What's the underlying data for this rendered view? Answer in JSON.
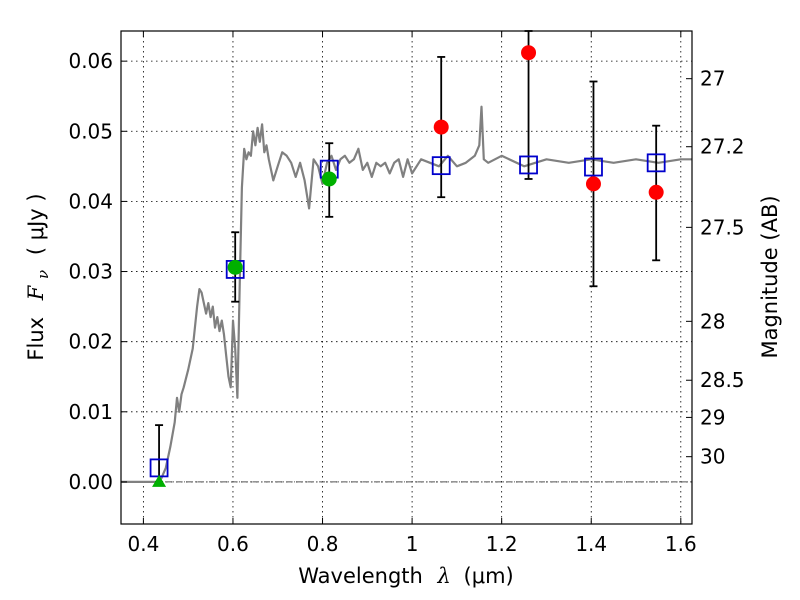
{
  "chart_data": {
    "type": "scatter",
    "xlabel": {
      "text": "Wavelength",
      "symbol": "λ",
      "unit": "(μm)"
    },
    "ylabel": {
      "text": "Flux",
      "symbol": "F",
      "subscript": "ν",
      "unit": "( μJy )"
    },
    "y2label": "Magnitude (AB)",
    "xlim": [
      0.35,
      1.625
    ],
    "ylim": [
      -0.006,
      0.0643
    ],
    "grid": true,
    "x_ticks": [
      0.4,
      0.6,
      0.8,
      1.0,
      1.2,
      1.4,
      1.6
    ],
    "x_tick_labels": [
      "0.4",
      "0.6",
      "0.8",
      "1",
      "1.2",
      "1.4",
      "1.6"
    ],
    "y_ticks": [
      0.0,
      0.01,
      0.02,
      0.03,
      0.04,
      0.05,
      0.06
    ],
    "y_tick_labels": [
      "0.00",
      "0.01",
      "0.02",
      "0.03",
      "0.04",
      "0.05",
      "0.06"
    ],
    "magnitude_ticks": [
      {
        "label": "27",
        "flux": 0.0575
      },
      {
        "label": "27.2",
        "flux": 0.0478
      },
      {
        "label": "27.5",
        "flux": 0.0363
      },
      {
        "label": "28",
        "flux": 0.0229
      },
      {
        "label": "28.5",
        "flux": 0.0145
      },
      {
        "label": "29",
        "flux": 0.0092
      },
      {
        "label": "30",
        "flux": 0.0036
      }
    ],
    "colors": {
      "sed": "#808080",
      "model_points": "#0000cc",
      "detections": "#ff0000",
      "fitted": "#00b000",
      "errorbars": "#000000",
      "zero_line": "#555555"
    },
    "sed_curve": {
      "x": [
        0.35,
        0.4,
        0.42,
        0.43,
        0.44,
        0.45,
        0.46,
        0.47,
        0.475,
        0.48,
        0.485,
        0.49,
        0.5,
        0.51,
        0.52,
        0.525,
        0.53,
        0.54,
        0.545,
        0.55,
        0.555,
        0.56,
        0.565,
        0.57,
        0.575,
        0.58,
        0.585,
        0.59,
        0.595,
        0.6,
        0.605,
        0.61,
        0.615,
        0.62,
        0.625,
        0.63,
        0.635,
        0.64,
        0.645,
        0.65,
        0.655,
        0.66,
        0.665,
        0.67,
        0.675,
        0.68,
        0.69,
        0.7,
        0.71,
        0.72,
        0.73,
        0.74,
        0.75,
        0.76,
        0.77,
        0.78,
        0.79,
        0.8,
        0.81,
        0.82,
        0.83,
        0.84,
        0.85,
        0.86,
        0.87,
        0.88,
        0.89,
        0.9,
        0.91,
        0.92,
        0.93,
        0.94,
        0.95,
        0.96,
        0.97,
        0.98,
        0.99,
        1.0,
        1.02,
        1.04,
        1.06,
        1.08,
        1.1,
        1.12,
        1.14,
        1.15,
        1.155,
        1.16,
        1.17,
        1.2,
        1.25,
        1.3,
        1.35,
        1.4,
        1.45,
        1.5,
        1.55,
        1.6,
        1.625
      ],
      "y": [
        0.0,
        0.0,
        0.0,
        0.0,
        0.0005,
        0.002,
        0.005,
        0.0085,
        0.012,
        0.01,
        0.0125,
        0.0135,
        0.016,
        0.019,
        0.025,
        0.0275,
        0.027,
        0.024,
        0.0255,
        0.0235,
        0.025,
        0.022,
        0.0235,
        0.0215,
        0.023,
        0.021,
        0.018,
        0.015,
        0.0135,
        0.023,
        0.019,
        0.012,
        0.028,
        0.042,
        0.0475,
        0.046,
        0.047,
        0.0465,
        0.05,
        0.048,
        0.0505,
        0.0485,
        0.051,
        0.047,
        0.048,
        0.046,
        0.043,
        0.045,
        0.047,
        0.0465,
        0.0455,
        0.0435,
        0.0455,
        0.043,
        0.039,
        0.046,
        0.045,
        0.0425,
        0.0455,
        0.0465,
        0.0445,
        0.046,
        0.0465,
        0.0455,
        0.046,
        0.0475,
        0.0445,
        0.0455,
        0.0435,
        0.0455,
        0.045,
        0.0455,
        0.044,
        0.0455,
        0.046,
        0.0435,
        0.046,
        0.044,
        0.046,
        0.0455,
        0.045,
        0.0465,
        0.045,
        0.0455,
        0.0465,
        0.048,
        0.0535,
        0.046,
        0.0455,
        0.0465,
        0.045,
        0.046,
        0.0455,
        0.046,
        0.0455,
        0.046,
        0.0455,
        0.046,
        0.046
      ]
    },
    "series": [
      {
        "marker": "square",
        "x": [
          0.435,
          0.605,
          0.815,
          1.065,
          1.26,
          1.405,
          1.545
        ],
        "y": [
          0.002,
          0.0303,
          0.0446,
          0.0451,
          0.0452,
          0.0449,
          0.0455
        ]
      },
      {
        "marker": "circle",
        "x": [
          1.065,
          1.26,
          1.405,
          1.545
        ],
        "y": [
          0.0506,
          0.0612,
          0.0425,
          0.0413
        ],
        "yerr_low": [
          0.0406,
          0.0432,
          0.0279,
          0.0316
        ],
        "yerr_high": [
          0.0606,
          0.0643,
          0.0571,
          0.0508
        ]
      },
      {
        "marker": "circle",
        "x": [
          0.605,
          0.815
        ],
        "y": [
          0.0306,
          0.0432
        ],
        "yerr_low": [
          0.0257,
          0.0378
        ],
        "yerr_high": [
          0.0356,
          0.0483
        ]
      },
      {
        "marker": "triangle",
        "x": [
          0.435
        ],
        "y": [
          0.0
        ],
        "yerr_low": [
          0.0
        ],
        "yerr_high": [
          0.0081
        ]
      }
    ]
  }
}
